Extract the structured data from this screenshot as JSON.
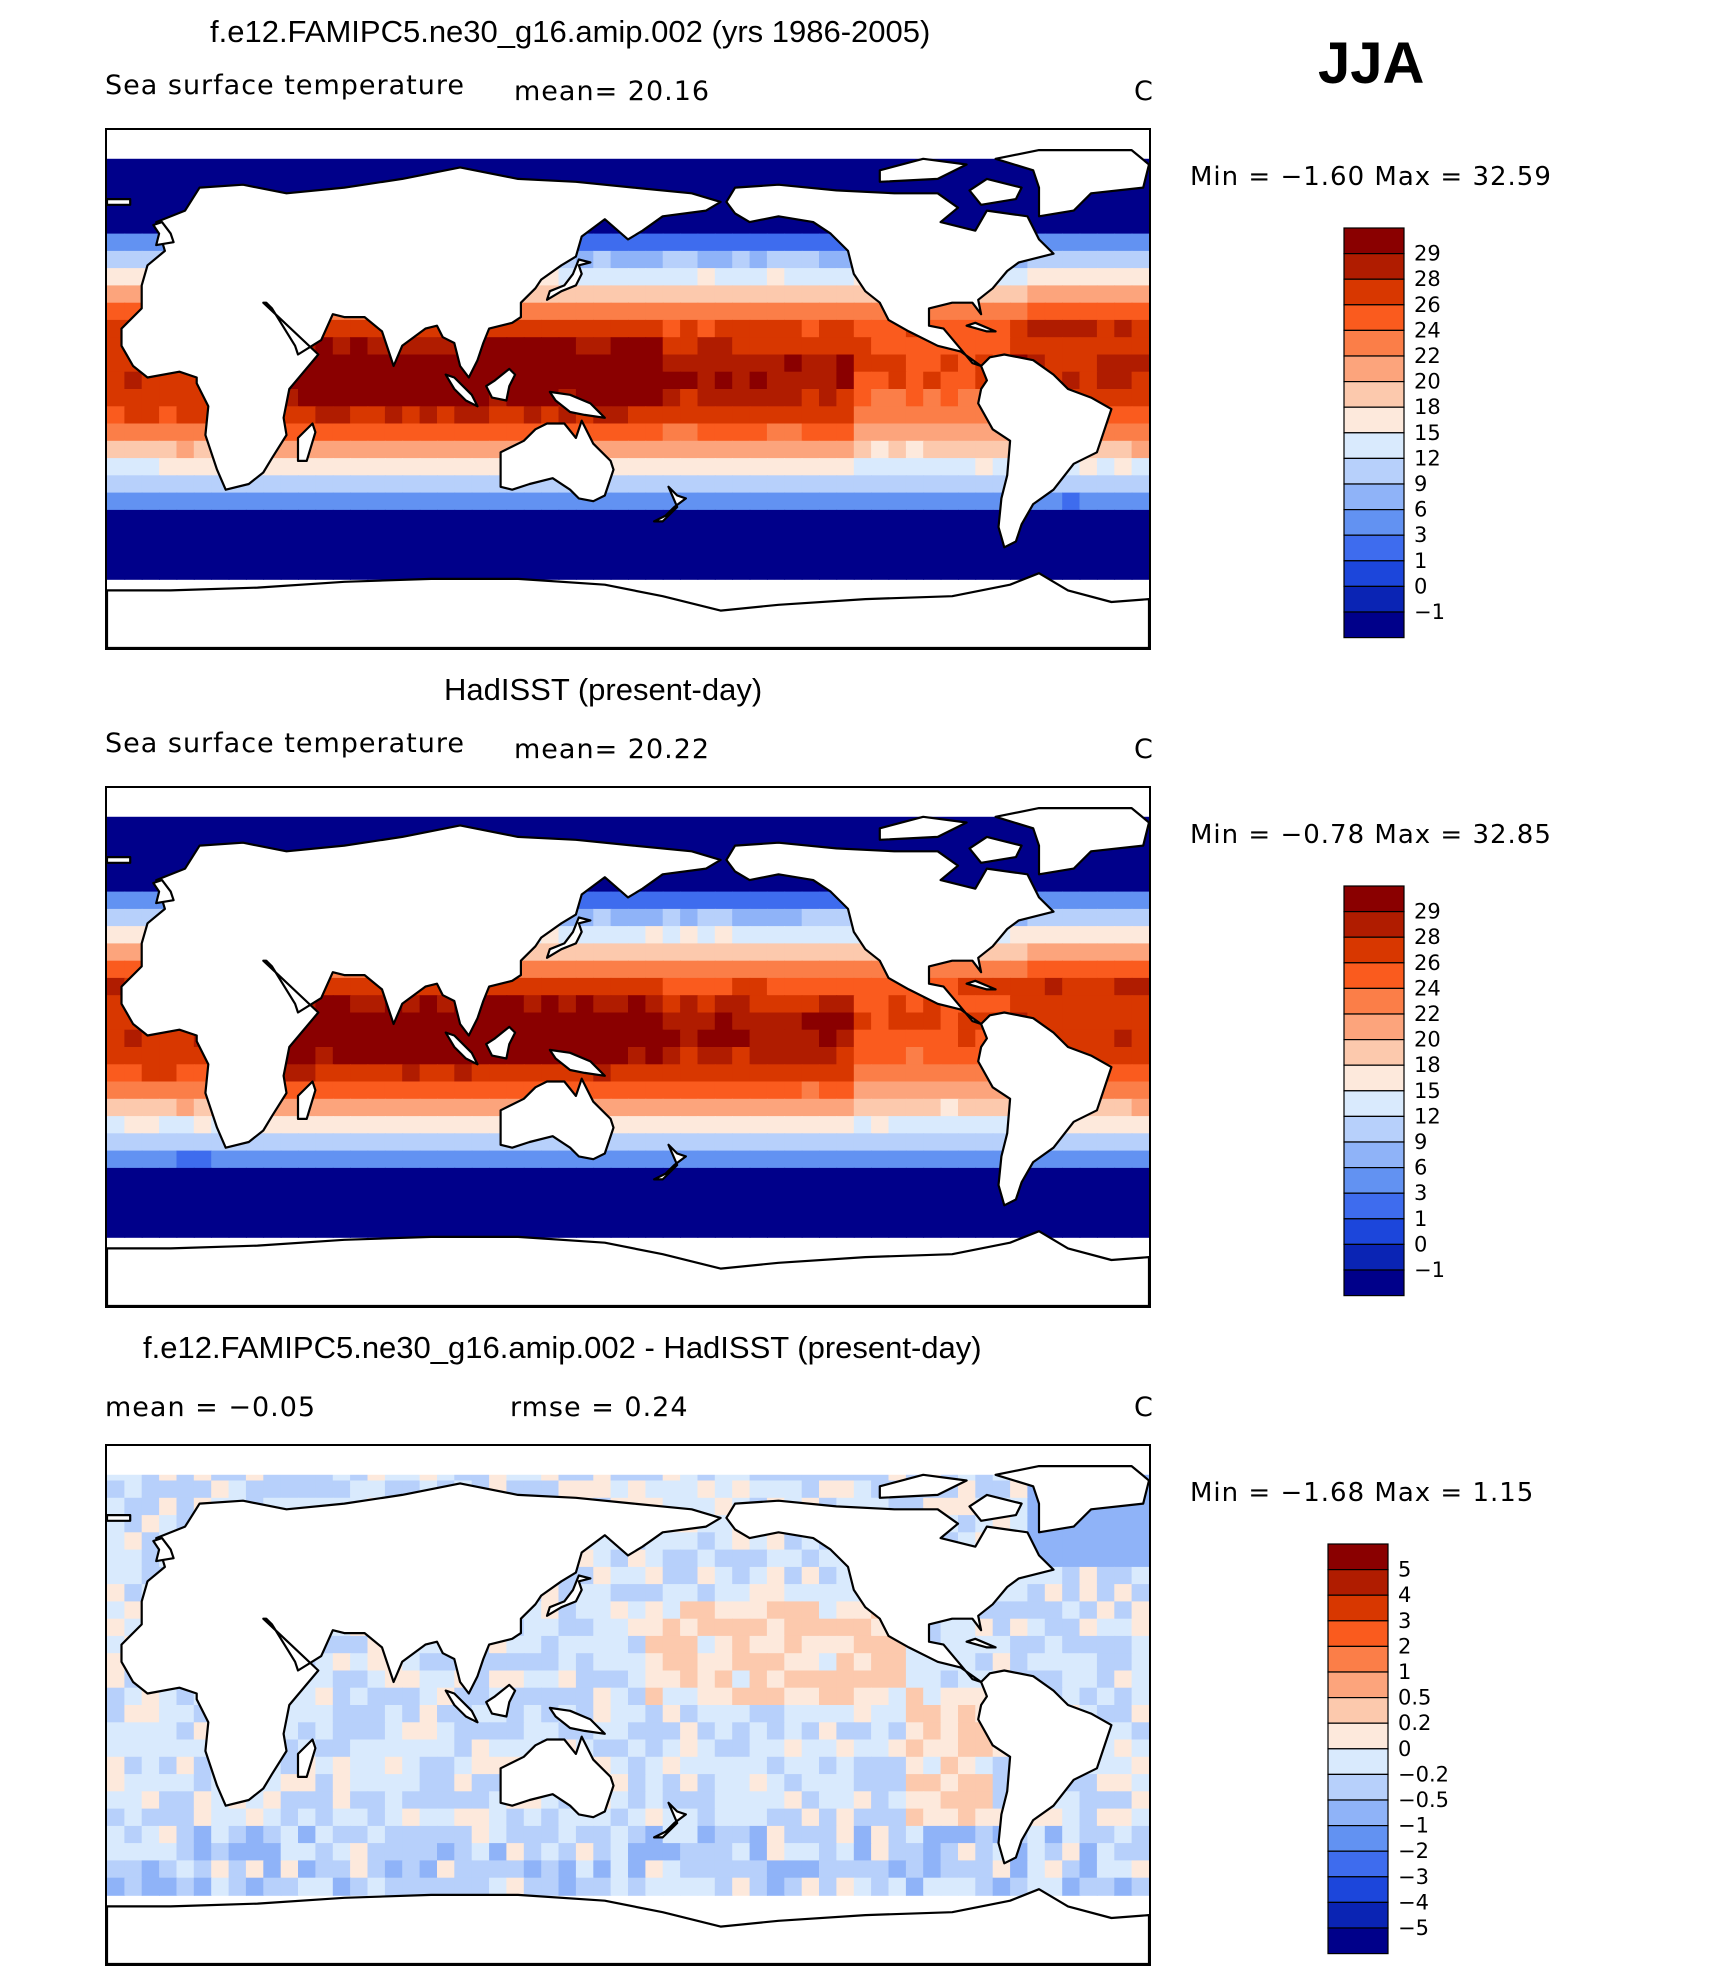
{
  "season": "JJA",
  "panels": [
    {
      "title": "f.e12.FAMIPC5.ne30_g16.amip.002 (yrs 1986-2005)",
      "field": "Sea surface temperature",
      "stat": "mean=   20.16",
      "units": "C",
      "minmax": "Min =   −1.60 Max =   32.59",
      "levels": [
        "29",
        "28",
        "26",
        "24",
        "22",
        "20",
        "18",
        "15",
        "12",
        "9",
        "6",
        "3",
        "1",
        "0",
        "−1"
      ],
      "colors": [
        "#8a0000",
        "#b01c00",
        "#d83700",
        "#fa5b1e",
        "#fb7e48",
        "#fca47c",
        "#fcc9ad",
        "#fde9dc",
        "#d9eafd",
        "#b7d0fb",
        "#8fb3f8",
        "#6292f2",
        "#3e6cee",
        "#1c46db",
        "#0a24b4",
        "#00008a"
      ]
    },
    {
      "title": "HadISST (present-day)",
      "field": "Sea surface temperature",
      "stat": "mean=   20.22",
      "units": "C",
      "minmax": "Min =   −0.78 Max =   32.85",
      "levels": [
        "29",
        "28",
        "26",
        "24",
        "22",
        "20",
        "18",
        "15",
        "12",
        "9",
        "6",
        "3",
        "1",
        "0",
        "−1"
      ],
      "colors": [
        "#8a0000",
        "#b01c00",
        "#d83700",
        "#fa5b1e",
        "#fb7e48",
        "#fca47c",
        "#fcc9ad",
        "#fde9dc",
        "#d9eafd",
        "#b7d0fb",
        "#8fb3f8",
        "#6292f2",
        "#3e6cee",
        "#1c46db",
        "#0a24b4",
        "#00008a"
      ]
    },
    {
      "title": "f.e12.FAMIPC5.ne30_g16.amip.002 - HadISST (present-day)",
      "field": "mean =    −0.05",
      "stat": "rmse =     0.24",
      "units": "C",
      "minmax": "Min =   −1.68 Max =     1.15",
      "levels": [
        "5",
        "4",
        "3",
        "2",
        "1",
        "0.5",
        "0.2",
        "0",
        "−0.2",
        "−0.5",
        "−1",
        "−2",
        "−3",
        "−4",
        "−5"
      ],
      "colors": [
        "#8a0000",
        "#b01c00",
        "#d83700",
        "#fa5b1e",
        "#fb7e48",
        "#fca47c",
        "#fcc9ad",
        "#fde9dc",
        "#d9eafd",
        "#b7d0fb",
        "#8fb3f8",
        "#6292f2",
        "#3e6cee",
        "#1c46db",
        "#0a24b4",
        "#00008a"
      ]
    }
  ]
}
